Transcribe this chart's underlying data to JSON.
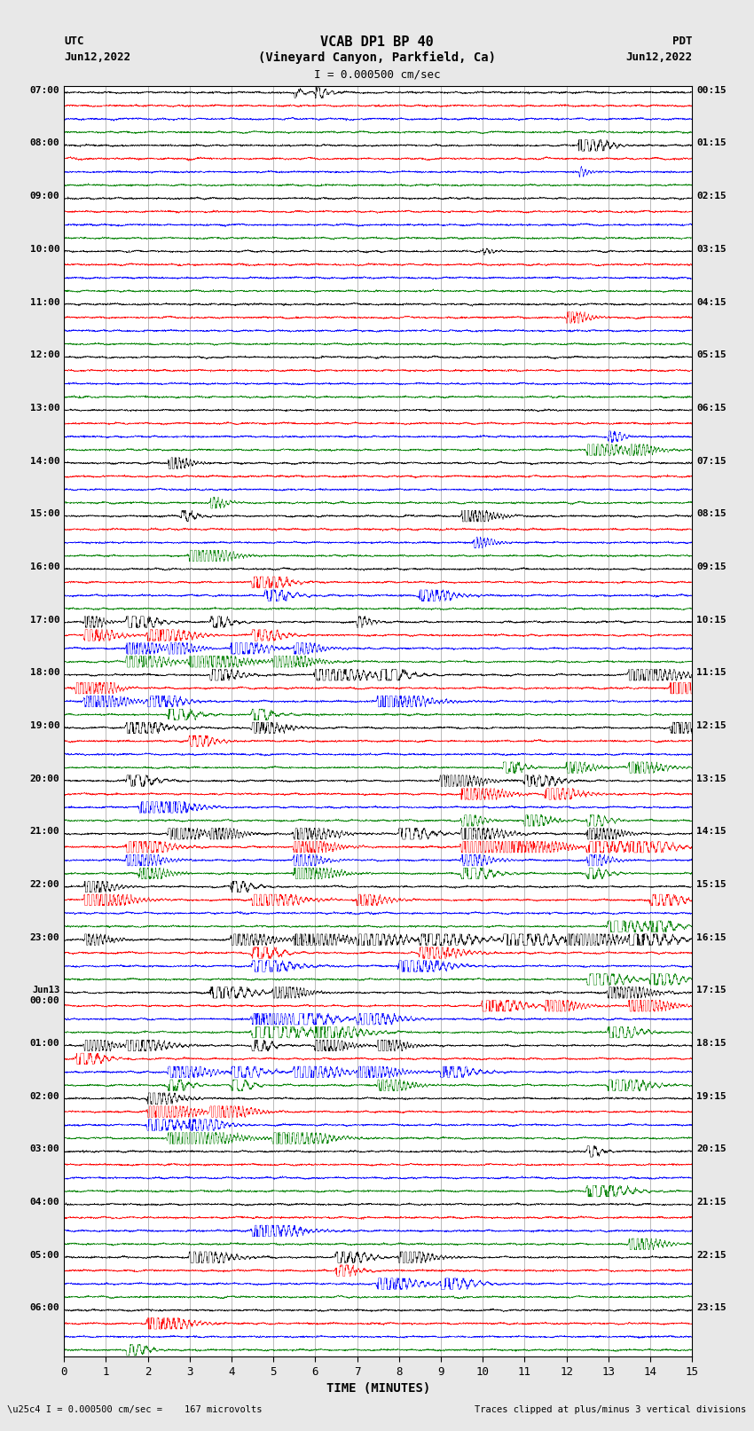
{
  "title_line1": "VCAB DP1 BP 40",
  "title_line2": "(Vineyard Canyon, Parkfield, Ca)",
  "scale_label": "I = 0.000500 cm/sec",
  "left_top_label": "UTC",
  "left_date": "Jun12,2022",
  "right_top_label": "PDT",
  "right_date": "Jun12,2022",
  "xlabel": "TIME (MINUTES)",
  "bottom_left": "\\u25c4 I = 0.000500 cm/sec =    167 microvolts",
  "bottom_right": "Traces clipped at plus/minus 3 vertical divisions",
  "left_times": [
    "07:00",
    "08:00",
    "09:00",
    "10:00",
    "11:00",
    "12:00",
    "13:00",
    "14:00",
    "15:00",
    "16:00",
    "17:00",
    "18:00",
    "19:00",
    "20:00",
    "21:00",
    "22:00",
    "23:00",
    "Jun13\n00:00",
    "01:00",
    "02:00",
    "03:00",
    "04:00",
    "05:00",
    "06:00"
  ],
  "right_times": [
    "00:15",
    "01:15",
    "02:15",
    "03:15",
    "04:15",
    "05:15",
    "06:15",
    "07:15",
    "08:15",
    "09:15",
    "10:15",
    "11:15",
    "12:15",
    "13:15",
    "14:15",
    "15:15",
    "16:15",
    "17:15",
    "18:15",
    "19:15",
    "20:15",
    "21:15",
    "22:15",
    "23:15"
  ],
  "n_rows": 24,
  "traces_per_row": 4,
  "trace_colors": [
    "black",
    "red",
    "blue",
    "green"
  ],
  "x_min": 0,
  "x_max": 15,
  "x_ticks": [
    0,
    1,
    2,
    3,
    4,
    5,
    6,
    7,
    8,
    9,
    10,
    11,
    12,
    13,
    14,
    15
  ],
  "bg_color": "#e8e8e8",
  "plot_bg": "white",
  "vgrid_color": "#888888"
}
